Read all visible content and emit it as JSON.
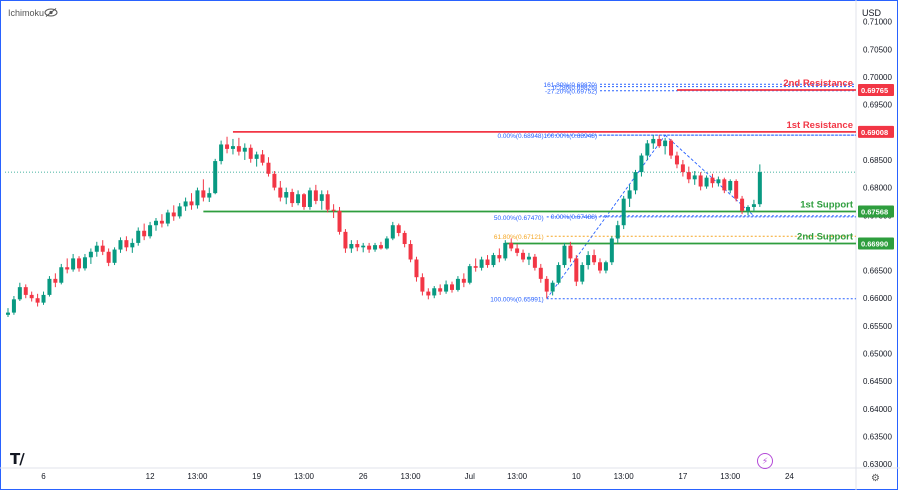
{
  "header": {
    "indicator_label": "Ichimoku",
    "currency": "USD"
  },
  "icons": {
    "visibility": "eye-icon",
    "logo": "tradingview-logo-icon",
    "alert": "lightning-icon",
    "settings": "settings-icon"
  },
  "colors": {
    "up": "#089981",
    "down": "#f23645",
    "resistance": "#f23645",
    "support": "#2e9e3e",
    "fib": "#2962ff",
    "fib_gold": "#f5a623"
  },
  "chart_data": {
    "type": "candlestick",
    "y_ticks": [
      "0.71000",
      "0.70500",
      "0.70000",
      "0.69500",
      "0.69000",
      "0.68500",
      "0.68000",
      "0.67500",
      "0.67000",
      "0.66500",
      "0.66000",
      "0.65500",
      "0.65000",
      "0.64500",
      "0.64000",
      "0.63500",
      "0.63000"
    ],
    "y_tick_values": [
      0.71,
      0.705,
      0.7,
      0.695,
      0.69,
      0.685,
      0.68,
      0.675,
      0.67,
      0.665,
      0.66,
      0.655,
      0.65,
      0.645,
      0.64,
      0.635,
      0.63
    ],
    "ylim": [
      0.6293,
      0.7132
    ],
    "x_ticks": [
      {
        "label": "6",
        "bar": 6
      },
      {
        "label": "12",
        "bar": 24
      },
      {
        "label": "13:00",
        "bar": 32
      },
      {
        "label": "19",
        "bar": 42
      },
      {
        "label": "13:00",
        "bar": 50
      },
      {
        "label": "26",
        "bar": 60
      },
      {
        "label": "13:00",
        "bar": 68
      },
      {
        "label": "Jul",
        "bar": 78
      },
      {
        "label": "13:00",
        "bar": 86
      },
      {
        "label": "10",
        "bar": 96
      },
      {
        "label": "13:00",
        "bar": 104
      },
      {
        "label": "17",
        "bar": 114
      },
      {
        "label": "13:00",
        "bar": 122
      },
      {
        "label": "24",
        "bar": 132
      }
    ],
    "levels": [
      {
        "name": "2nd Resistance",
        "value": 0.69765,
        "color": "#f23645",
        "from_bar": 113
      },
      {
        "name": "1st Resistance",
        "value": 0.69008,
        "color": "#f23645",
        "from_bar": 38
      },
      {
        "name": "1st Support",
        "value": 0.67568,
        "color": "#2e9e3e",
        "from_bar": 33
      },
      {
        "name": "2nd Support",
        "value": 0.6699,
        "color": "#2e9e3e",
        "from_bar": 84
      }
    ],
    "current_price": 0.6828,
    "fib_sets": [
      {
        "start_bar": 91,
        "levels": [
          {
            "label": "0.00%(0.68948)",
            "value": 0.68948,
            "color": "#2962ff"
          },
          {
            "label": "50.00%(0.67470)",
            "value": 0.6747,
            "color": "#2962ff"
          },
          {
            "label": "61.80%(0.67121)",
            "value": 0.67121,
            "color": "#f5a623"
          },
          {
            "label": "100.00%(0.65991)",
            "value": 0.65991,
            "color": "#2962ff"
          }
        ]
      },
      {
        "start_bar": 100,
        "levels": [
          {
            "label": "0.00%(0.67488)",
            "value": 0.67488,
            "color": "#2962ff"
          },
          {
            "label": "100.00%(0.68948)",
            "value": 0.68948,
            "color": "#2962ff"
          },
          {
            "label": "161.80%(0.69870)",
            "value": 0.6987,
            "color": "#2962ff"
          },
          {
            "label": "-27.20%(0.69752)",
            "value": 0.69752,
            "color": "#2962ff"
          },
          {
            "label": "0.786(0.69826)",
            "value": 0.69826,
            "color": "#2962ff"
          }
        ]
      }
    ],
    "candles": [
      [
        0.657,
        0.6582,
        0.6566,
        0.6574
      ],
      [
        0.6574,
        0.6604,
        0.657,
        0.6598
      ],
      [
        0.6598,
        0.6628,
        0.6595,
        0.662
      ],
      [
        0.662,
        0.6625,
        0.66,
        0.6606
      ],
      [
        0.6606,
        0.6612,
        0.6594,
        0.66
      ],
      [
        0.66,
        0.6608,
        0.6585,
        0.6592
      ],
      [
        0.6592,
        0.6612,
        0.6588,
        0.6606
      ],
      [
        0.6606,
        0.664,
        0.6603,
        0.6635
      ],
      [
        0.6635,
        0.6645,
        0.662,
        0.6628
      ],
      [
        0.6628,
        0.6662,
        0.6625,
        0.6656
      ],
      [
        0.6656,
        0.6672,
        0.6645,
        0.6652
      ],
      [
        0.6652,
        0.668,
        0.6648,
        0.6672
      ],
      [
        0.6672,
        0.6676,
        0.6648,
        0.6654
      ],
      [
        0.6654,
        0.668,
        0.665,
        0.6674
      ],
      [
        0.6674,
        0.669,
        0.6662,
        0.6684
      ],
      [
        0.6684,
        0.6702,
        0.6675,
        0.6695
      ],
      [
        0.6695,
        0.6705,
        0.6678,
        0.6684
      ],
      [
        0.6684,
        0.669,
        0.6658,
        0.6664
      ],
      [
        0.6664,
        0.6692,
        0.666,
        0.6688
      ],
      [
        0.6688,
        0.671,
        0.6682,
        0.6705
      ],
      [
        0.6705,
        0.6712,
        0.6685,
        0.6692
      ],
      [
        0.6692,
        0.6708,
        0.6682,
        0.67
      ],
      [
        0.67,
        0.6728,
        0.6695,
        0.6722
      ],
      [
        0.6722,
        0.6735,
        0.6705,
        0.6712
      ],
      [
        0.6712,
        0.6738,
        0.6708,
        0.6732
      ],
      [
        0.6732,
        0.6745,
        0.6722,
        0.674
      ],
      [
        0.674,
        0.6752,
        0.6728,
        0.6735
      ],
      [
        0.6735,
        0.676,
        0.673,
        0.6755
      ],
      [
        0.6755,
        0.6768,
        0.674,
        0.6748
      ],
      [
        0.6748,
        0.6772,
        0.6744,
        0.6766
      ],
      [
        0.6766,
        0.6782,
        0.6758,
        0.6775
      ],
      [
        0.6775,
        0.679,
        0.676,
        0.6768
      ],
      [
        0.6768,
        0.68,
        0.6762,
        0.6795
      ],
      [
        0.6795,
        0.6815,
        0.6775,
        0.6782
      ],
      [
        0.6782,
        0.68,
        0.6774,
        0.679
      ],
      [
        0.679,
        0.6852,
        0.6788,
        0.6848
      ],
      [
        0.6848,
        0.6885,
        0.6842,
        0.6878
      ],
      [
        0.6878,
        0.6892,
        0.6862,
        0.687
      ],
      [
        0.687,
        0.6888,
        0.686,
        0.6875
      ],
      [
        0.6875,
        0.689,
        0.6858,
        0.6865
      ],
      [
        0.6865,
        0.688,
        0.685,
        0.6872
      ],
      [
        0.6872,
        0.6878,
        0.6845,
        0.6852
      ],
      [
        0.6852,
        0.6865,
        0.6838,
        0.686
      ],
      [
        0.686,
        0.6868,
        0.684,
        0.6845
      ],
      [
        0.6845,
        0.6855,
        0.682,
        0.6825
      ],
      [
        0.6825,
        0.683,
        0.6795,
        0.68
      ],
      [
        0.68,
        0.6812,
        0.6775,
        0.6782
      ],
      [
        0.6782,
        0.68,
        0.677,
        0.6792
      ],
      [
        0.6792,
        0.6798,
        0.6765,
        0.6772
      ],
      [
        0.6772,
        0.6795,
        0.6768,
        0.6788
      ],
      [
        0.6788,
        0.679,
        0.676,
        0.6765
      ],
      [
        0.6765,
        0.68,
        0.676,
        0.6795
      ],
      [
        0.6795,
        0.6805,
        0.677,
        0.6776
      ],
      [
        0.6776,
        0.6795,
        0.676,
        0.6788
      ],
      [
        0.6788,
        0.6795,
        0.6755,
        0.676
      ],
      [
        0.676,
        0.677,
        0.6745,
        0.6758
      ],
      [
        0.6758,
        0.6765,
        0.6715,
        0.672
      ],
      [
        0.672,
        0.6725,
        0.6682,
        0.669
      ],
      [
        0.669,
        0.6705,
        0.6682,
        0.6698
      ],
      [
        0.6698,
        0.6705,
        0.6685,
        0.6692
      ],
      [
        0.6692,
        0.67,
        0.6683,
        0.6695
      ],
      [
        0.6695,
        0.67,
        0.6682,
        0.6688
      ],
      [
        0.6688,
        0.67,
        0.6684,
        0.6696
      ],
      [
        0.6696,
        0.6702,
        0.6688,
        0.669
      ],
      [
        0.669,
        0.6712,
        0.6688,
        0.6708
      ],
      [
        0.6708,
        0.6738,
        0.6705,
        0.6732
      ],
      [
        0.6732,
        0.6735,
        0.6712,
        0.6718
      ],
      [
        0.6718,
        0.6722,
        0.6692,
        0.6698
      ],
      [
        0.6698,
        0.6705,
        0.6665,
        0.667
      ],
      [
        0.667,
        0.6675,
        0.663,
        0.6638
      ],
      [
        0.6638,
        0.6645,
        0.6605,
        0.6612
      ],
      [
        0.6612,
        0.6618,
        0.6598,
        0.6605
      ],
      [
        0.6605,
        0.6622,
        0.66,
        0.6618
      ],
      [
        0.6618,
        0.6625,
        0.6606,
        0.6612
      ],
      [
        0.6612,
        0.6632,
        0.6608,
        0.6625
      ],
      [
        0.6625,
        0.663,
        0.661,
        0.6615
      ],
      [
        0.6615,
        0.664,
        0.6612,
        0.6635
      ],
      [
        0.6635,
        0.6645,
        0.662,
        0.6628
      ],
      [
        0.6628,
        0.6662,
        0.6625,
        0.6658
      ],
      [
        0.6658,
        0.6672,
        0.6648,
        0.6655
      ],
      [
        0.6655,
        0.6675,
        0.665,
        0.667
      ],
      [
        0.667,
        0.6678,
        0.6655,
        0.666
      ],
      [
        0.666,
        0.6682,
        0.6656,
        0.6678
      ],
      [
        0.6678,
        0.669,
        0.6665,
        0.6672
      ],
      [
        0.6672,
        0.6705,
        0.6668,
        0.67
      ],
      [
        0.67,
        0.6708,
        0.6685,
        0.669
      ],
      [
        0.669,
        0.6698,
        0.6676,
        0.6682
      ],
      [
        0.6682,
        0.6688,
        0.6665,
        0.667
      ],
      [
        0.667,
        0.6682,
        0.666,
        0.6675
      ],
      [
        0.6675,
        0.668,
        0.665,
        0.6655
      ],
      [
        0.6655,
        0.6662,
        0.6628,
        0.6635
      ],
      [
        0.6635,
        0.664,
        0.66,
        0.6612
      ],
      [
        0.6612,
        0.6632,
        0.6605,
        0.6628
      ],
      [
        0.6628,
        0.6665,
        0.6625,
        0.666
      ],
      [
        0.666,
        0.67,
        0.6655,
        0.6695
      ],
      [
        0.6695,
        0.6702,
        0.6665,
        0.6672
      ],
      [
        0.6672,
        0.6678,
        0.6622,
        0.663
      ],
      [
        0.663,
        0.6665,
        0.6625,
        0.666
      ],
      [
        0.666,
        0.6685,
        0.6652,
        0.6678
      ],
      [
        0.6678,
        0.6688,
        0.666,
        0.6665
      ],
      [
        0.6665,
        0.6672,
        0.6645,
        0.665
      ],
      [
        0.665,
        0.6668,
        0.6645,
        0.6665
      ],
      [
        0.6665,
        0.6712,
        0.666,
        0.6708
      ],
      [
        0.6708,
        0.674,
        0.67,
        0.6732
      ],
      [
        0.6732,
        0.6785,
        0.6725,
        0.678
      ],
      [
        0.678,
        0.6805,
        0.6765,
        0.6795
      ],
      [
        0.6795,
        0.6832,
        0.6788,
        0.6828
      ],
      [
        0.6828,
        0.6862,
        0.682,
        0.6858
      ],
      [
        0.6858,
        0.6886,
        0.685,
        0.688
      ],
      [
        0.688,
        0.6895,
        0.687,
        0.6888
      ],
      [
        0.6888,
        0.6895,
        0.6872,
        0.6875
      ],
      [
        0.6875,
        0.689,
        0.686,
        0.6885
      ],
      [
        0.6885,
        0.6888,
        0.6852,
        0.6858
      ],
      [
        0.6858,
        0.6865,
        0.6835,
        0.6842
      ],
      [
        0.6842,
        0.685,
        0.682,
        0.6828
      ],
      [
        0.6828,
        0.6838,
        0.6808,
        0.6815
      ],
      [
        0.6815,
        0.683,
        0.6805,
        0.6822
      ],
      [
        0.6822,
        0.6828,
        0.6795,
        0.6802
      ],
      [
        0.6802,
        0.6822,
        0.6798,
        0.6818
      ],
      [
        0.6818,
        0.6825,
        0.68,
        0.6808
      ],
      [
        0.6808,
        0.682,
        0.6802,
        0.6815
      ],
      [
        0.6815,
        0.6818,
        0.679,
        0.6795
      ],
      [
        0.6795,
        0.6815,
        0.679,
        0.6812
      ],
      [
        0.6812,
        0.6815,
        0.6775,
        0.678
      ],
      [
        0.678,
        0.6785,
        0.6752,
        0.6758
      ],
      [
        0.6758,
        0.6768,
        0.675,
        0.6765
      ],
      [
        0.6765,
        0.6778,
        0.6758,
        0.677
      ],
      [
        0.677,
        0.6842,
        0.6765,
        0.6828
      ]
    ]
  }
}
